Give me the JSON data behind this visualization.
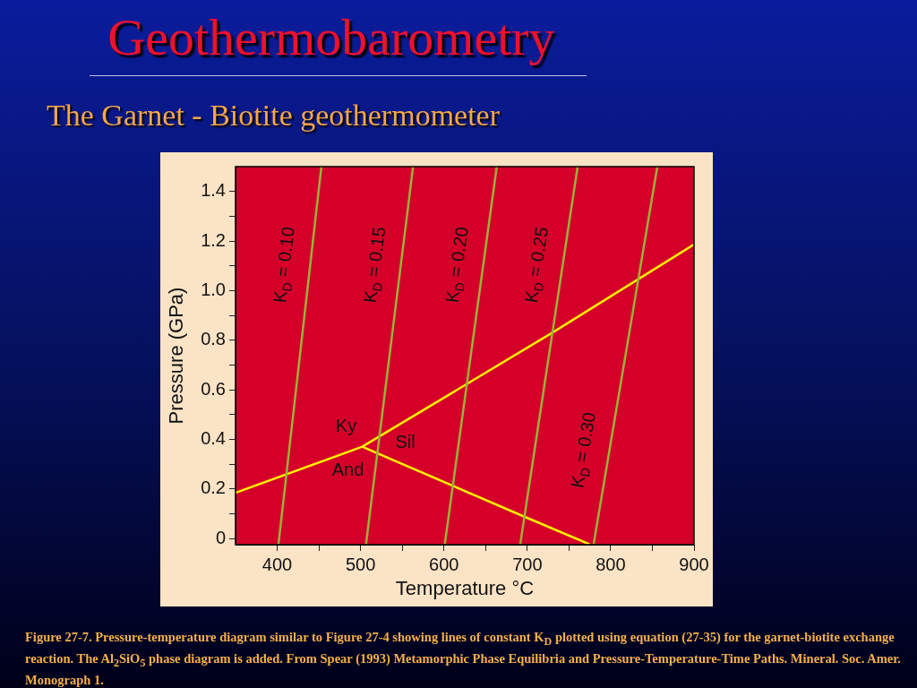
{
  "chart_data": {
    "type": "line",
    "title": "Geothermobarometry",
    "subtitle": "The Garnet - Biotite geothermometer",
    "xlabel": "Temperature °C",
    "ylabel": "Pressure (GPa)",
    "xlim": [
      350,
      900
    ],
    "ylim": [
      -0.025,
      1.5
    ],
    "xticks": [
      400,
      {
        "value": 450,
        "label": null
      },
      500,
      {
        "value": 550,
        "label": null
      },
      600,
      {
        "value": 650,
        "label": null
      },
      700,
      {
        "value": 750,
        "label": null
      },
      800,
      {
        "value": 850,
        "label": null
      },
      900
    ],
    "yticks": [
      0,
      {
        "value": 0.1,
        "label": null
      },
      0.2,
      {
        "value": 0.3,
        "label": null
      },
      0.4,
      {
        "value": 0.5,
        "label": null
      },
      0.6,
      {
        "value": 0.7,
        "label": null
      },
      0.8,
      {
        "value": 0.9,
        "label": null
      },
      {
        "value": 1,
        "label": "1.0"
      },
      {
        "value": 1.1,
        "label": null
      },
      1.2,
      {
        "value": 1.3,
        "label": null
      },
      1.4
    ],
    "marker": "none",
    "line_style": "solid",
    "grid": false,
    "legend": false,
    "series": [
      {
        "name": "K$_{D}$ = 0.10",
        "color": "#9cb03a",
        "x": [
          401.5,
          453
        ],
        "values": [
          -0.024,
          1.5
        ]
      },
      {
        "name": "K$_{D}$ = 0.15",
        "color": "#9cb03a",
        "x": [
          506.5,
          563
        ],
        "values": [
          -0.024,
          1.5
        ]
      },
      {
        "name": "K$_{D}$ = 0.20",
        "color": "#9cb03a",
        "x": [
          601,
          663.4
        ],
        "values": [
          -0.024,
          1.5
        ]
      },
      {
        "name": "K$_{D}$ = 0.25",
        "color": "#9cb03a",
        "x": [
          691.5,
          760.4
        ],
        "values": [
          -0.024,
          1.5
        ]
      },
      {
        "name": "K$_{D}$ = 0.30",
        "color": "#9cb03a",
        "x": [
          779.5,
          856
        ],
        "values": [
          -0.024,
          1.5
        ]
      },
      {
        "color": "#fff000",
        "x": [
          350,
          502,
          730,
          900
        ],
        "values": [
          0.184,
          0.37,
          0.83,
          1.186
        ]
      },
      {
        "color": "#fff000",
        "x": [
          502,
          696.5,
          775
        ],
        "values": [
          0.37,
          0.088,
          -0.024
        ]
      }
    ],
    "annotations": [
      "Ky",
      "Sil",
      "And",
      "Figure 27-7. Pressure-temperature diagram similar to Figure 27-4 showing lines of constant K$_{D}$ plotted using equation (27-35) for the garnet-biotite exchange reaction. The Al$_{2}$SiO$_{5}$ phase diagram is added. From Spear (1993) Metamorphic Phase Equilibria and Pressure-Temperature-Time Paths. Mineral. Soc. Amer. Monograph 1."
    ]
  }
}
